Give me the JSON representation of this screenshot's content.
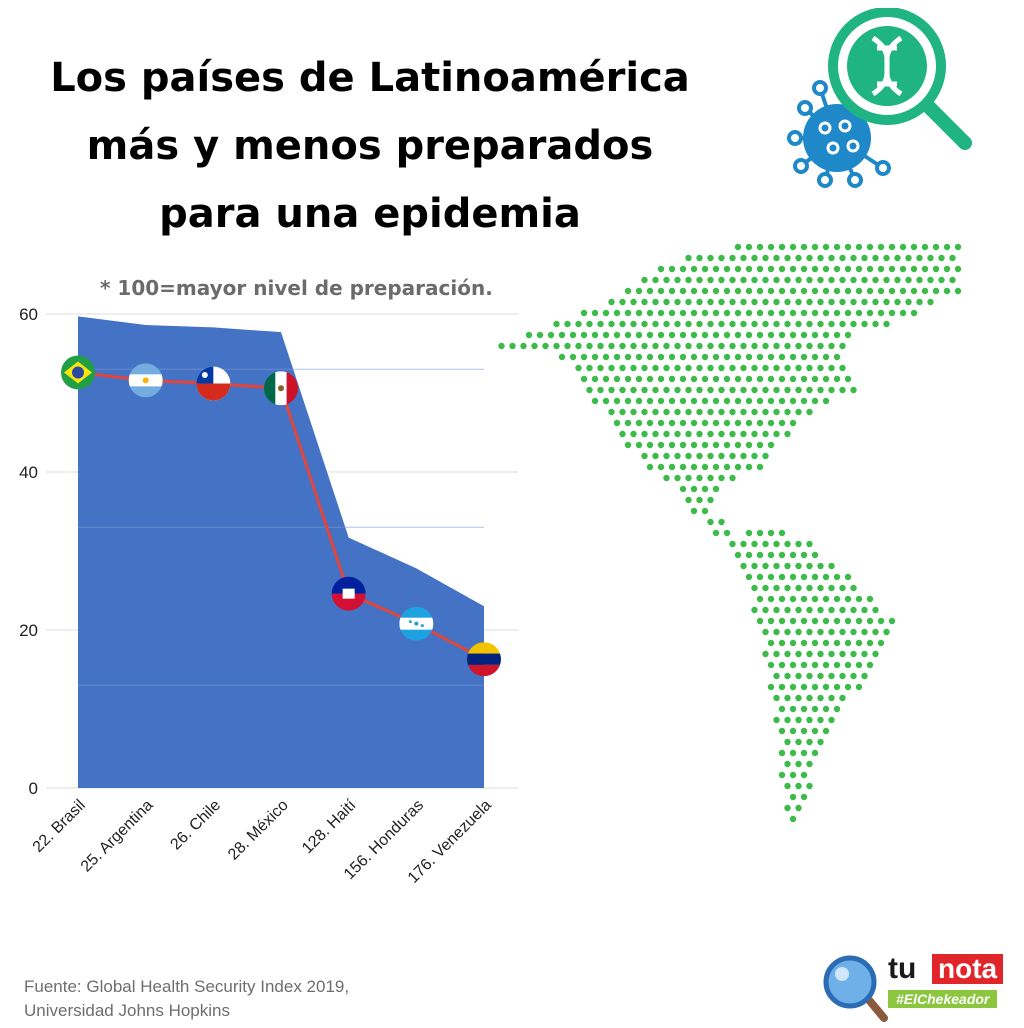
{
  "title_lines": [
    "Los países de Latinoamérica",
    "más y menos preparados",
    "para una epidemia"
  ],
  "subtitle": "* 100=mayor nivel de preparación.",
  "source_lines": [
    "Fuente: Global Health Security Index 2019,",
    "Universidad Johns Hopkins"
  ],
  "logo": {
    "tu": "tu",
    "nota": "nota",
    "tag": "#ElChekeador"
  },
  "colors": {
    "area": "#4472c4",
    "line": "#e2453c",
    "map_dots": "#3dbb4a",
    "virus_blue": "#1e88c8",
    "virus_green": "#1fb482"
  },
  "chart_data": {
    "type": "area",
    "title": "",
    "xlabel": "",
    "ylabel": "",
    "ylim": [
      0,
      60
    ],
    "yticks": [
      0,
      20,
      40,
      60
    ],
    "grid": true,
    "categories": [
      "22. Brasil",
      "25. Argentina",
      "26. Chile",
      "28. México",
      "128. Haití",
      "156. Honduras",
      "176. Venezuela"
    ],
    "series": [
      {
        "values": [
          59.7,
          58.6,
          58.3,
          57.7,
          31.7,
          27.8,
          23.0
        ]
      },
      {
        "values": [
          52.6,
          51.6,
          51.2,
          50.6,
          24.6,
          20.8,
          16.3
        ]
      }
    ],
    "flags": [
      "brasil-flag-icon",
      "argentina-flag-icon",
      "chile-flag-icon",
      "mexico-flag-icon",
      "haiti-flag-icon",
      "honduras-flag-icon",
      "venezuela-flag-icon"
    ]
  }
}
